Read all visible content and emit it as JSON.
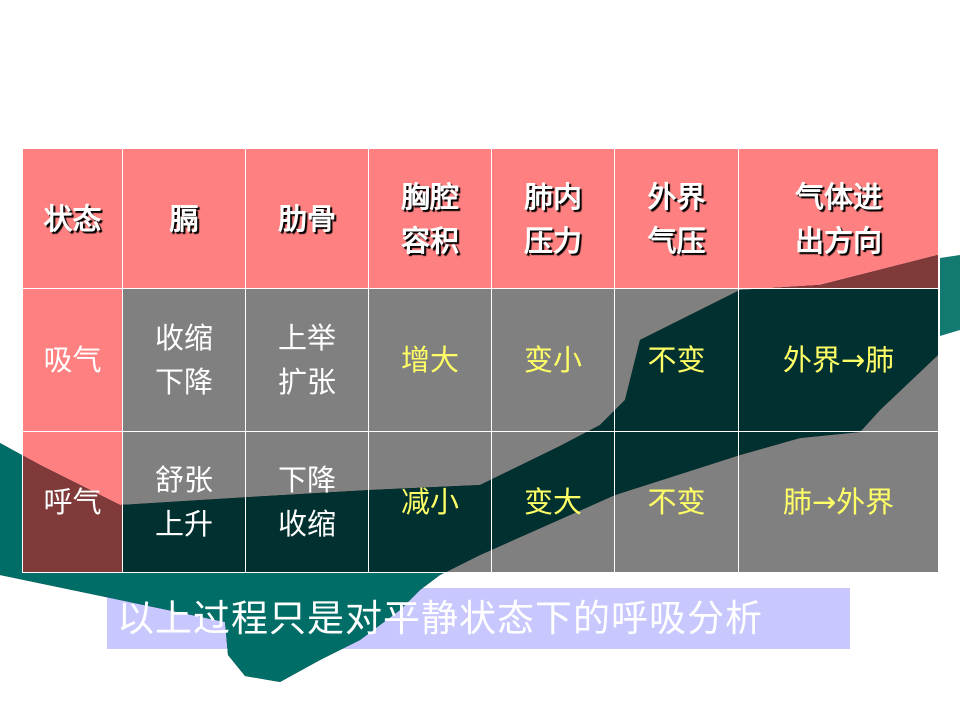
{
  "table": {
    "headers": [
      [
        "状态"
      ],
      [
        "膈"
      ],
      [
        "肋骨"
      ],
      [
        "胸腔",
        "容积"
      ],
      [
        "肺内",
        "压力"
      ],
      [
        "外界",
        "气压"
      ],
      [
        "气体进",
        "出方向"
      ]
    ],
    "rows": [
      {
        "state": "吸气",
        "diaphragm": [
          "收缩",
          "下降"
        ],
        "ribs": [
          "上举",
          "扩张"
        ],
        "thoracic_volume": "增大",
        "lung_pressure": "变小",
        "outside_pressure": "不变",
        "airflow": "外界→肺"
      },
      {
        "state": "呼气",
        "diaphragm": [
          "舒张",
          "上升"
        ],
        "ribs": [
          "下降",
          "收缩"
        ],
        "thoracic_volume": "减小",
        "lung_pressure": "变大",
        "outside_pressure": "不变",
        "airflow": "肺→外界"
      }
    ]
  },
  "caption": "以上过程只是对平静状态下的呼吸分析",
  "colors": {
    "header_bg": "#ff8080",
    "body_bg": "#808080",
    "result_text": "#ffff66",
    "caption_bg": "#c8c8ff",
    "hand_teal": "#006e66"
  }
}
